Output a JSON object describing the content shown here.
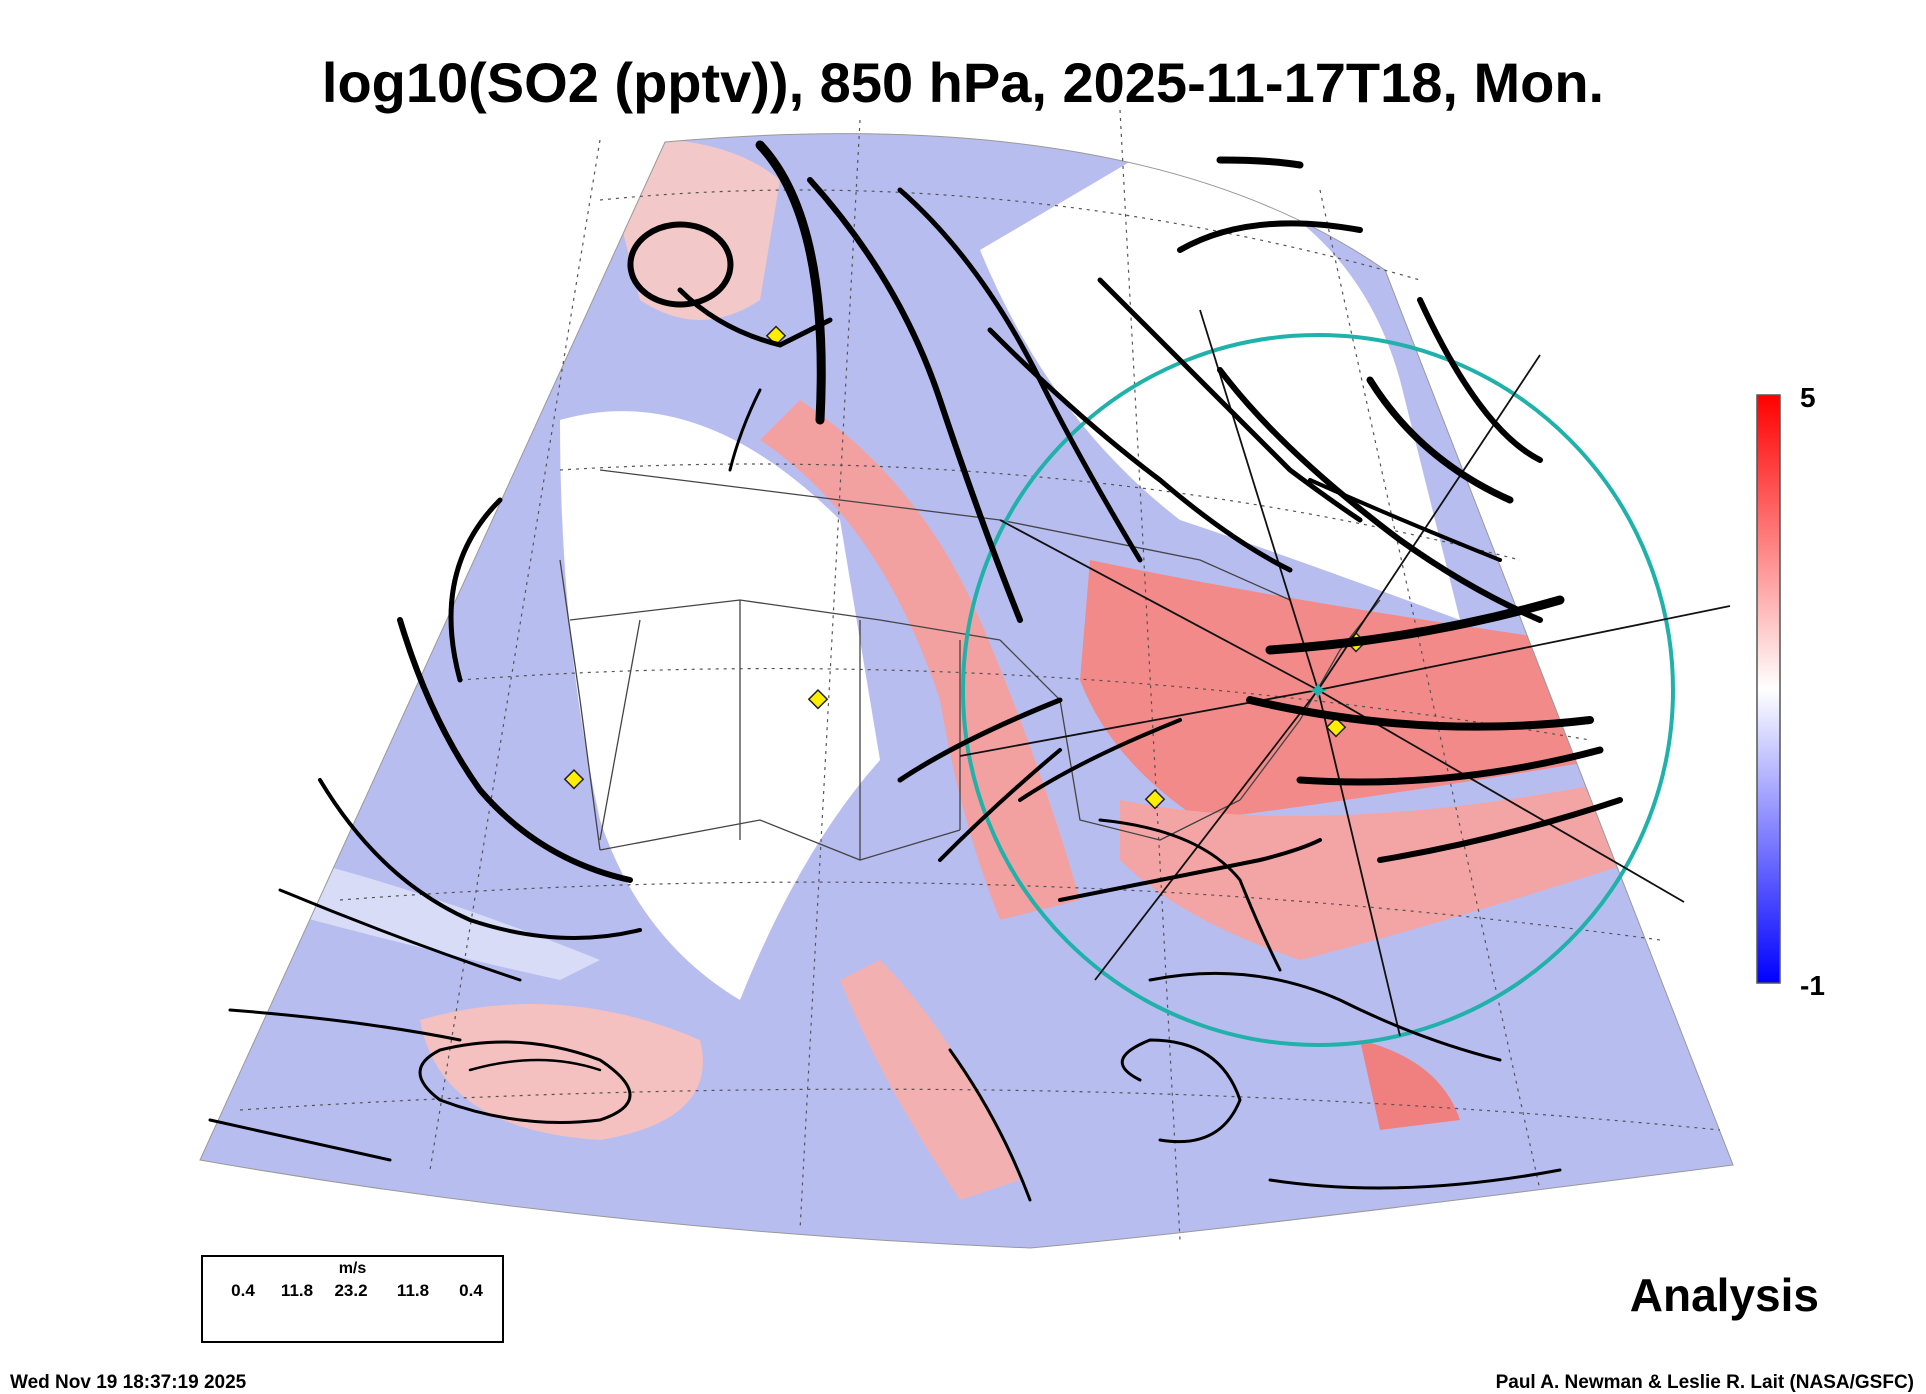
{
  "title": "log10(SO2 (pptv)), 850 hPa, 2025-11-17T18, Mon.",
  "colorbar": {
    "max_label": "5",
    "min_label": "-1",
    "max_value": 5,
    "min_value": -1,
    "colors": [
      "#0000ff",
      "#ffffff",
      "#ff0000"
    ]
  },
  "legend": {
    "unit": "m/s",
    "values": [
      "0.4",
      "11.8",
      "23.2",
      "11.8",
      "0.4"
    ]
  },
  "product_label": "Analysis",
  "footer": {
    "timestamp": "Wed Nov 19 18:37:19 2025",
    "credit": "Paul A. Newman & Leslie R. Lait (NASA/GSFC)"
  },
  "colors": {
    "range_ring": "#20b2aa",
    "station_marker": "#ffee00",
    "streamline": "#000000",
    "high_so2": "#ff0000",
    "low_so2": "#0000ff"
  }
}
